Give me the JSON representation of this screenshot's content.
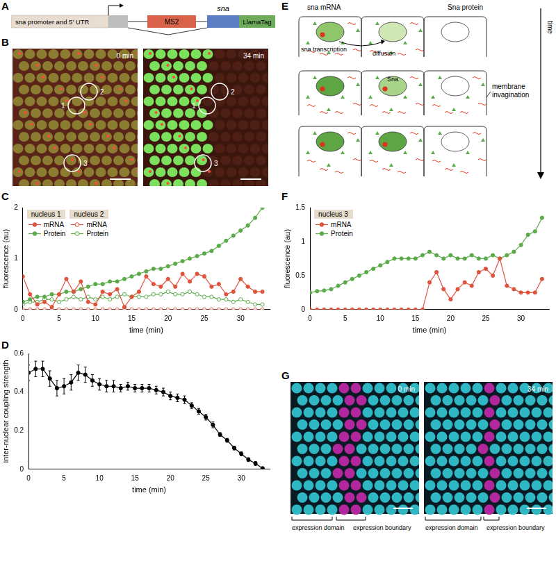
{
  "panels": {
    "A": {
      "label": "A",
      "promoter": "sna promoter and 5' UTR",
      "ms2": "MS2",
      "gene": "sna",
      "tag": "LlamaTag"
    },
    "B": {
      "label": "B",
      "times": [
        "0 min",
        "34 min"
      ],
      "nuclei": [
        "1",
        "2",
        "3"
      ]
    },
    "E": {
      "label": "E",
      "mrna": "sna mRNA",
      "protein": "Sna protein",
      "transcription": "sna transcription",
      "diffusion": "diffusion",
      "nuclear_protein": "Sna",
      "membrane": "membrane invagination",
      "time": "time"
    },
    "G": {
      "label": "G",
      "times": [
        "0 min",
        "34 min"
      ],
      "domain": "expression domain",
      "boundary": "expression boundary"
    }
  },
  "chart_data": [
    {
      "title": "C",
      "type": "line",
      "x": [
        0,
        1,
        2,
        3,
        4,
        5,
        6,
        7,
        8,
        9,
        10,
        11,
        12,
        13,
        14,
        15,
        16,
        17,
        18,
        19,
        20,
        21,
        22,
        23,
        24,
        25,
        26,
        27,
        28,
        29,
        30,
        31,
        32,
        33
      ],
      "xlim": [
        0,
        34
      ],
      "xticks": [
        0,
        5,
        10,
        15,
        20,
        25,
        30
      ],
      "ylim": [
        0,
        2
      ],
      "yticks": [
        0,
        1,
        2
      ],
      "x_label": "time (min)",
      "y_label": "fluorescence (au)",
      "grid": false,
      "legend": "upper left",
      "series": [
        {
          "name": "mRNA",
          "group": "nucleus 1",
          "color": "#e0533d",
          "marker": "circle",
          "line_style": "solid",
          "values": [
            0.65,
            0.3,
            0.1,
            0.15,
            0.05,
            0.3,
            0.6,
            0.35,
            0.55,
            0.15,
            0.1,
            0.35,
            0.3,
            0.4,
            0.05,
            0.25,
            0.35,
            0.65,
            0.5,
            0.45,
            0.6,
            0.45,
            0.7,
            0.55,
            0.7,
            0.65,
            0.45,
            0.5,
            0.3,
            0.35,
            0.6,
            0.45,
            0.35,
            0.35
          ]
        },
        {
          "name": "Protein",
          "group": "nucleus 1",
          "color": "#5bab4a",
          "marker": "circle",
          "line_style": "solid",
          "values": [
            0.15,
            0.2,
            0.25,
            0.25,
            0.3,
            0.3,
            0.35,
            0.35,
            0.4,
            0.45,
            0.5,
            0.5,
            0.55,
            0.55,
            0.6,
            0.65,
            0.7,
            0.75,
            0.8,
            0.8,
            0.85,
            0.9,
            0.95,
            1.0,
            1.05,
            1.1,
            1.15,
            1.25,
            1.35,
            1.45,
            1.55,
            1.65,
            1.8,
            2.0
          ]
        },
        {
          "name": "mRNA",
          "group": "nucleus 2",
          "color": "#e0533d",
          "marker": "open circle",
          "line_style": "solid",
          "values": [
            0,
            0,
            0,
            0,
            0,
            0,
            0,
            0,
            0,
            0,
            0,
            0,
            0,
            0,
            0,
            0,
            0,
            0,
            0,
            0,
            0,
            0,
            0,
            0,
            0,
            0,
            0,
            0,
            0,
            0,
            0,
            0,
            0,
            0
          ]
        },
        {
          "name": "Protein",
          "group": "nucleus 2",
          "color": "#5bab4a",
          "marker": "open circle",
          "line_style": "solid",
          "values": [
            0.1,
            0.15,
            0.15,
            0.2,
            0.2,
            0.15,
            0.2,
            0.25,
            0.2,
            0.25,
            0.2,
            0.25,
            0.2,
            0.25,
            0.3,
            0.25,
            0.25,
            0.25,
            0.3,
            0.3,
            0.35,
            0.3,
            0.3,
            0.35,
            0.3,
            0.25,
            0.25,
            0.2,
            0.2,
            0.15,
            0.2,
            0.15,
            0.1,
            0.1
          ]
        }
      ]
    },
    {
      "title": "D",
      "type": "line",
      "x": [
        0,
        1,
        2,
        3,
        4,
        5,
        6,
        7,
        8,
        9,
        10,
        11,
        12,
        13,
        14,
        15,
        16,
        17,
        18,
        19,
        20,
        21,
        22,
        23,
        24,
        25,
        26,
        27,
        28,
        29,
        30,
        31,
        32,
        33
      ],
      "xlim": [
        0,
        34
      ],
      "xticks": [
        0,
        5,
        10,
        15,
        20,
        25,
        30
      ],
      "ylim": [
        0,
        0.6
      ],
      "yticks": [
        0,
        0.2,
        0.4,
        0.6
      ],
      "x_label": "time (min)",
      "y_label": "inter-nuclear coupling strength",
      "grid": false,
      "color": "#000000",
      "marker": "circle",
      "line_style": "solid",
      "values": [
        0.5,
        0.52,
        0.52,
        0.47,
        0.42,
        0.43,
        0.45,
        0.5,
        0.49,
        0.46,
        0.44,
        0.43,
        0.43,
        0.42,
        0.43,
        0.42,
        0.42,
        0.42,
        0.41,
        0.4,
        0.38,
        0.37,
        0.36,
        0.33,
        0.3,
        0.27,
        0.23,
        0.18,
        0.15,
        0.11,
        0.08,
        0.05,
        0.03,
        0.005
      ],
      "errors": [
        0.04,
        0.04,
        0.04,
        0.04,
        0.04,
        0.04,
        0.04,
        0.04,
        0.04,
        0.03,
        0.03,
        0.03,
        0.03,
        0.02,
        0.02,
        0.02,
        0.02,
        0.02,
        0.02,
        0.02,
        0.02,
        0.02,
        0.02,
        0.015,
        0.015,
        0.015,
        0.015,
        0.01,
        0.01,
        0.01,
        0.01,
        0.01,
        0.01,
        0.005
      ]
    },
    {
      "title": "F",
      "type": "line",
      "x": [
        0,
        1,
        2,
        3,
        4,
        5,
        6,
        7,
        8,
        9,
        10,
        11,
        12,
        13,
        14,
        15,
        16,
        17,
        18,
        19,
        20,
        21,
        22,
        23,
        24,
        25,
        26,
        27,
        28,
        29,
        30,
        31,
        32,
        33
      ],
      "xlim": [
        0,
        34
      ],
      "xticks": [
        0,
        5,
        10,
        15,
        20,
        25,
        30
      ],
      "ylim": [
        0,
        1.5
      ],
      "yticks": [
        0,
        0.5,
        1,
        1.5
      ],
      "x_label": "time (min)",
      "y_label": "fluorescence (au)",
      "grid": false,
      "legend": "upper left",
      "series": [
        {
          "name": "mRNA",
          "group": "nucleus 3",
          "color": "#e0533d",
          "marker": "circle",
          "line_style": "solid",
          "values": [
            0,
            0,
            0,
            0,
            0,
            0,
            0,
            0,
            0,
            0,
            0,
            0,
            0,
            0,
            0,
            0,
            0,
            0.4,
            0.55,
            0.3,
            0.15,
            0.3,
            0.4,
            0.35,
            0.55,
            0.6,
            0.5,
            0.75,
            0.35,
            0.3,
            0.25,
            0.25,
            0.25,
            0.45
          ]
        },
        {
          "name": "Protein",
          "group": "nucleus 3",
          "color": "#5bab4a",
          "marker": "circle",
          "line_style": "solid",
          "values": [
            0.25,
            0.27,
            0.28,
            0.3,
            0.35,
            0.4,
            0.45,
            0.5,
            0.55,
            0.6,
            0.65,
            0.7,
            0.75,
            0.75,
            0.75,
            0.75,
            0.8,
            0.85,
            0.8,
            0.75,
            0.8,
            0.75,
            0.75,
            0.8,
            0.75,
            0.75,
            0.8,
            0.75,
            0.8,
            0.85,
            0.95,
            1.1,
            1.15,
            1.35
          ]
        }
      ]
    }
  ]
}
